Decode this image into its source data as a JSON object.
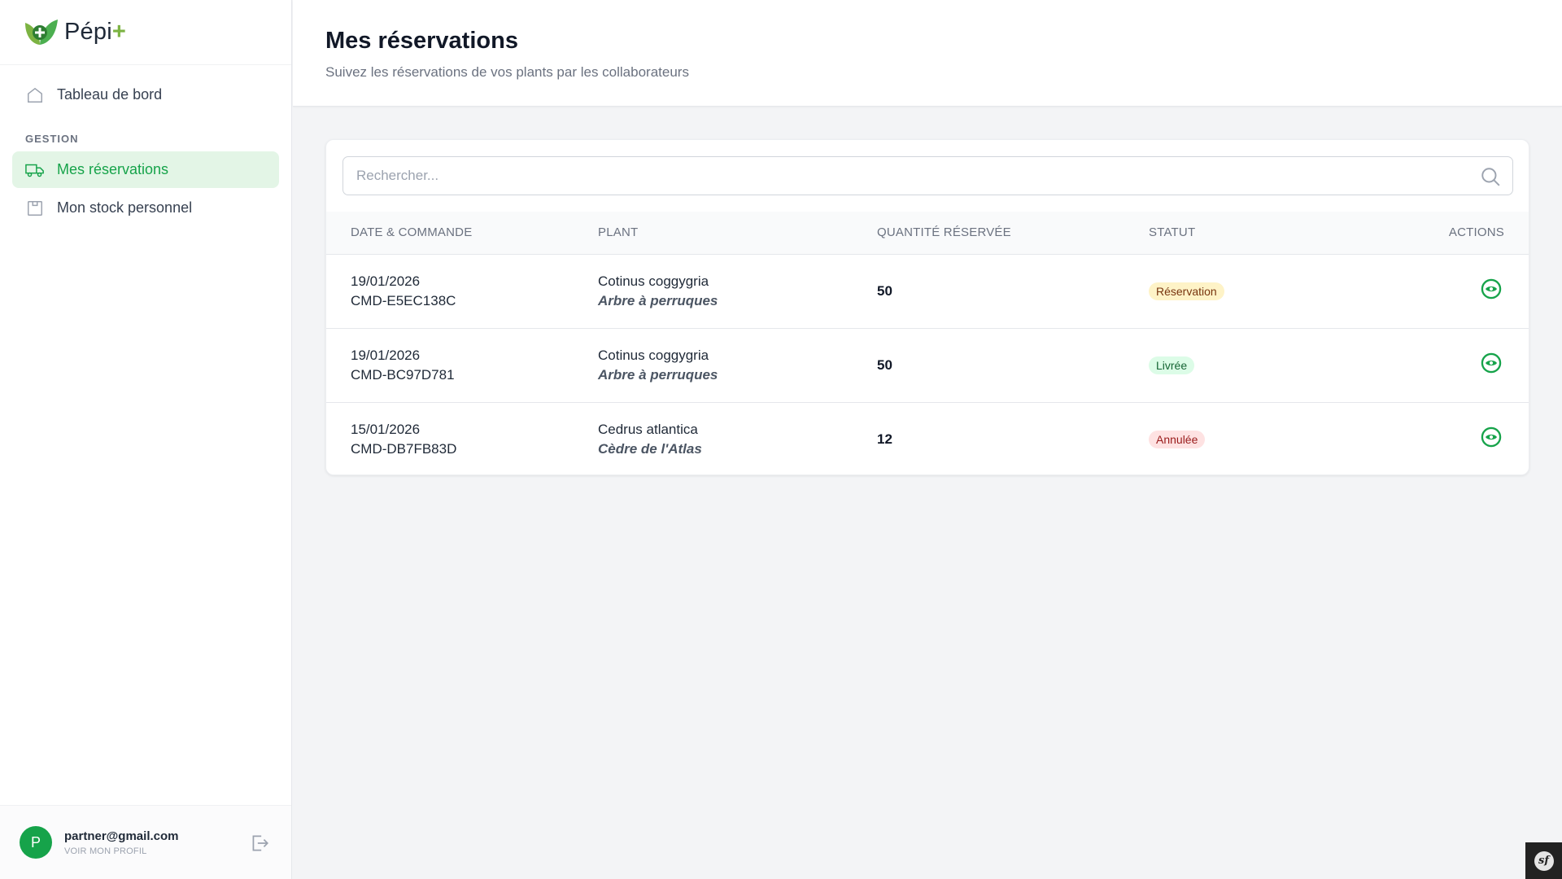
{
  "brand": {
    "name": "Pépi",
    "plus": "+"
  },
  "sidebar": {
    "items": [
      {
        "label": "Tableau de bord",
        "icon": "home-icon"
      },
      {
        "label": "Mes réservations",
        "icon": "truck-icon",
        "active": true
      },
      {
        "label": "Mon stock personnel",
        "icon": "box-icon"
      }
    ],
    "section_label": "GESTION"
  },
  "user": {
    "initial": "P",
    "email": "partner@gmail.com",
    "profile_link": "VOIR MON PROFIL"
  },
  "header": {
    "title": "Mes réservations",
    "subtitle": "Suivez les réservations de vos plants par les collaborateurs"
  },
  "search": {
    "placeholder": "Rechercher..."
  },
  "table": {
    "columns": [
      "DATE & COMMANDE",
      "PLANT",
      "QUANTITÉ RÉSERVÉE",
      "STATUT",
      "ACTIONS"
    ],
    "rows": [
      {
        "date": "19/01/2026",
        "order": "CMD-E5EC138C",
        "plant": "Cotinus coggygria",
        "common": "Arbre à perruques",
        "qty": "50",
        "status": "Réservation",
        "status_color": "#fef3c7"
      },
      {
        "date": "19/01/2026",
        "order": "CMD-BC97D781",
        "plant": "Cotinus coggygria",
        "common": "Arbre à perruques",
        "qty": "50",
        "status": "Livrée",
        "status_color": "#dcfce7"
      },
      {
        "date": "15/01/2026",
        "order": "CMD-DB7FB83D",
        "plant": "Cedrus atlantica",
        "common": "Cèdre de l'Atlas",
        "qty": "12",
        "status": "Annulée",
        "status_color": "#fee2e2"
      }
    ]
  },
  "colors": {
    "accent": "#16a34a",
    "brand_green": "#7cb342"
  }
}
